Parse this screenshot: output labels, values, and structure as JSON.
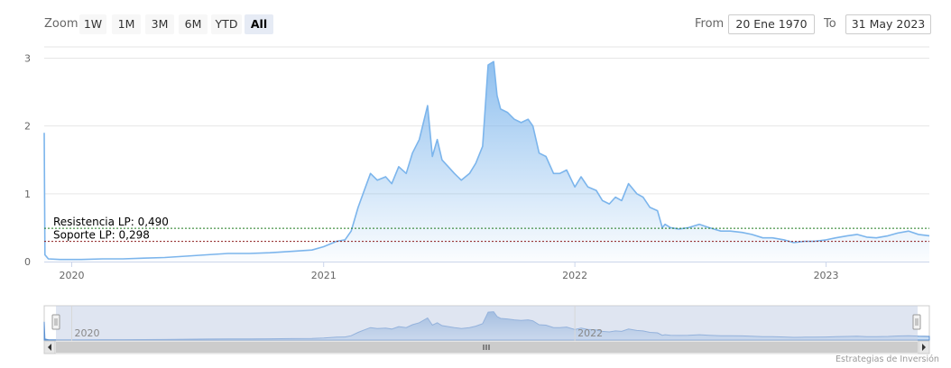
{
  "range_selector": {
    "zoom_label": "Zoom",
    "buttons": [
      "1W",
      "1M",
      "3M",
      "6M",
      "YTD",
      "All"
    ],
    "active": "All",
    "from_label": "From",
    "from_value": "20 Ene 1970",
    "to_label": "To",
    "to_value": "31 May 2023"
  },
  "credit": "Estrategias de Inversión",
  "colors": {
    "line": "#7cb5ec",
    "resistance": "#1f7a1f",
    "support": "#8b1a1a",
    "navigator_mask": "#dde3f0"
  },
  "chart_data": {
    "type": "area",
    "title": "",
    "xlabel": "",
    "ylabel": "",
    "x_ticks": [
      "2020",
      "2021",
      "2022",
      "2023"
    ],
    "y_ticks": [
      0,
      1,
      2,
      3
    ],
    "xlim": [
      "2019-11-22",
      "2023-05-31"
    ],
    "ylim": [
      0,
      3.1
    ],
    "grid": true,
    "series": [
      {
        "x": [
          "2019-11-22",
          "2019-11-23",
          "2019-11-28",
          "2019-12-15",
          "2020-01-15",
          "2020-02-15",
          "2020-03-15",
          "2020-04-15",
          "2020-05-15",
          "2020-06-15",
          "2020-07-15",
          "2020-08-15",
          "2020-09-15",
          "2020-10-15",
          "2020-11-15",
          "2020-12-15",
          "2021-01-01",
          "2021-01-20",
          "2021-02-01",
          "2021-02-10",
          "2021-02-20",
          "2021-03-01",
          "2021-03-10",
          "2021-03-20",
          "2021-04-01",
          "2021-04-10",
          "2021-04-20",
          "2021-05-01",
          "2021-05-10",
          "2021-05-20",
          "2021-06-01",
          "2021-06-08",
          "2021-06-15",
          "2021-06-22",
          "2021-07-01",
          "2021-07-10",
          "2021-07-20",
          "2021-08-01",
          "2021-08-10",
          "2021-08-20",
          "2021-08-28",
          "2021-09-05",
          "2021-09-10",
          "2021-09-15",
          "2021-09-25",
          "2021-10-05",
          "2021-10-15",
          "2021-10-25",
          "2021-11-01",
          "2021-11-10",
          "2021-11-20",
          "2021-12-01",
          "2021-12-10",
          "2021-12-20",
          "2022-01-01",
          "2022-01-10",
          "2022-01-20",
          "2022-02-01",
          "2022-02-10",
          "2022-02-20",
          "2022-03-01",
          "2022-03-10",
          "2022-03-20",
          "2022-04-01",
          "2022-04-10",
          "2022-04-20",
          "2022-05-01",
          "2022-05-08",
          "2022-05-12",
          "2022-05-20",
          "2022-06-01",
          "2022-06-15",
          "2022-07-01",
          "2022-07-15",
          "2022-08-01",
          "2022-08-15",
          "2022-09-01",
          "2022-09-15",
          "2022-10-01",
          "2022-10-15",
          "2022-11-01",
          "2022-11-15",
          "2022-12-01",
          "2022-12-15",
          "2023-01-01",
          "2023-01-15",
          "2023-02-01",
          "2023-02-15",
          "2023-03-01",
          "2023-03-15",
          "2023-04-01",
          "2023-04-15",
          "2023-05-01",
          "2023-05-15",
          "2023-05-31"
        ],
        "values": [
          1.9,
          0.1,
          0.04,
          0.03,
          0.03,
          0.04,
          0.04,
          0.05,
          0.06,
          0.08,
          0.1,
          0.12,
          0.12,
          0.13,
          0.15,
          0.17,
          0.22,
          0.3,
          0.32,
          0.45,
          0.8,
          1.05,
          1.3,
          1.2,
          1.25,
          1.15,
          1.4,
          1.3,
          1.6,
          1.8,
          2.3,
          1.55,
          1.8,
          1.5,
          1.4,
          1.3,
          1.2,
          1.3,
          1.45,
          1.7,
          2.9,
          2.95,
          2.45,
          2.25,
          2.2,
          2.1,
          2.05,
          2.1,
          2.0,
          1.6,
          1.55,
          1.3,
          1.3,
          1.35,
          1.1,
          1.25,
          1.1,
          1.05,
          0.9,
          0.85,
          0.95,
          0.9,
          1.15,
          1.0,
          0.95,
          0.8,
          0.75,
          0.5,
          0.55,
          0.5,
          0.48,
          0.5,
          0.55,
          0.5,
          0.45,
          0.45,
          0.43,
          0.4,
          0.35,
          0.35,
          0.32,
          0.28,
          0.3,
          0.3,
          0.32,
          0.35,
          0.38,
          0.4,
          0.36,
          0.35,
          0.38,
          0.42,
          0.45,
          0.4,
          0.38
        ]
      }
    ],
    "annotations": [
      {
        "label": "Resistencia LP: 0,490",
        "value": 0.49
      },
      {
        "label": "Soporte LP: 0,298",
        "value": 0.298
      }
    ],
    "navigator": {
      "x_ticks": [
        "2020",
        "2022"
      ]
    }
  }
}
